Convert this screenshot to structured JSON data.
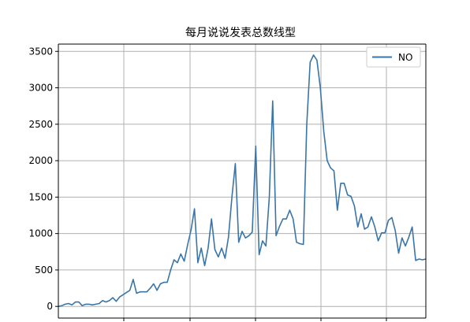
{
  "chart_data": {
    "type": "line",
    "title": "每月说说发表总数线型",
    "xlabel": "",
    "ylabel": "",
    "ylim": [
      -160,
      3600
    ],
    "yticks": [
      0,
      500,
      1000,
      1500,
      2000,
      2500,
      3000,
      3500
    ],
    "grid": true,
    "legend": "top-right",
    "colors": {
      "line": "#3a75a8",
      "grid": "#b0b0b0",
      "axis": "#000000"
    },
    "series": [
      {
        "name": "NO",
        "values": [
          0,
          10,
          30,
          40,
          20,
          60,
          60,
          10,
          30,
          30,
          20,
          30,
          40,
          80,
          60,
          80,
          120,
          70,
          130,
          160,
          190,
          220,
          370,
          180,
          200,
          200,
          200,
          250,
          310,
          220,
          310,
          330,
          330,
          500,
          640,
          600,
          720,
          620,
          850,
          1050,
          1340,
          600,
          800,
          560,
          800,
          1200,
          780,
          680,
          800,
          660,
          950,
          1500,
          1960,
          880,
          1030,
          940,
          970,
          1020,
          2200,
          710,
          900,
          830,
          1500,
          2820,
          970,
          1100,
          1200,
          1200,
          1320,
          1200,
          880,
          860,
          850,
          2500,
          3350,
          3450,
          3380,
          3000,
          2400,
          2000,
          1900,
          1860,
          1320,
          1690,
          1690,
          1530,
          1510,
          1380,
          1090,
          1270,
          1060,
          1090,
          1230,
          1090,
          900,
          1010,
          1010,
          1180,
          1220,
          1040,
          730,
          940,
          830,
          950,
          1090,
          630,
          650,
          640,
          650
        ]
      }
    ]
  }
}
